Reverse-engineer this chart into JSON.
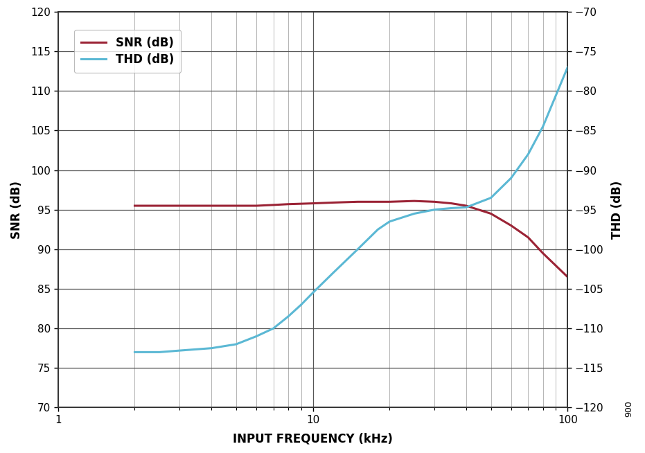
{
  "snr_freq": [
    2,
    2.5,
    3,
    4,
    5,
    6,
    7,
    8,
    10,
    12,
    15,
    20,
    25,
    30,
    35,
    40,
    50,
    60,
    70,
    80,
    100
  ],
  "snr_vals": [
    95.5,
    95.5,
    95.5,
    95.5,
    95.5,
    95.5,
    95.6,
    95.7,
    95.8,
    95.9,
    96.0,
    96.0,
    96.1,
    96.0,
    95.8,
    95.5,
    94.5,
    93.0,
    91.5,
    89.5,
    86.5
  ],
  "thd_freq": [
    2,
    2.5,
    3,
    4,
    5,
    6,
    7,
    8,
    9,
    10,
    12,
    15,
    18,
    20,
    25,
    30,
    35,
    40,
    50,
    60,
    70,
    80,
    100
  ],
  "thd_vals": [
    -113.0,
    -113.0,
    -112.8,
    -112.5,
    -112.0,
    -111.0,
    -110.0,
    -108.5,
    -107.0,
    -105.5,
    -103.0,
    -100.0,
    -97.5,
    -96.5,
    -95.5,
    -95.0,
    -94.8,
    -94.7,
    -93.5,
    -91.0,
    -88.0,
    -84.5,
    -77.0
  ],
  "snr_color": "#9B2335",
  "thd_color": "#5BB8D4",
  "snr_label": "SNR (dB)",
  "thd_label": "THD (dB)",
  "xlabel": "INPUT FREQUENCY (kHz)",
  "ylabel_left": "SNR (dB)",
  "ylabel_right": "THD (dB)",
  "ylim_left": [
    70,
    120
  ],
  "ylim_right": [
    -120,
    -70
  ],
  "xlim": [
    1,
    100
  ],
  "yticks_left": [
    70,
    75,
    80,
    85,
    90,
    95,
    100,
    105,
    110,
    115,
    120
  ],
  "yticks_right": [
    -120,
    -115,
    -110,
    -105,
    -100,
    -95,
    -90,
    -85,
    -80,
    -75,
    -70
  ],
  "background_color": "#ffffff",
  "grid_major_color": "#555555",
  "grid_minor_color": "#999999",
  "line_width": 2.2,
  "annotation": "900",
  "legend_fontsize": 12,
  "axis_label_fontsize": 12,
  "tick_fontsize": 11
}
